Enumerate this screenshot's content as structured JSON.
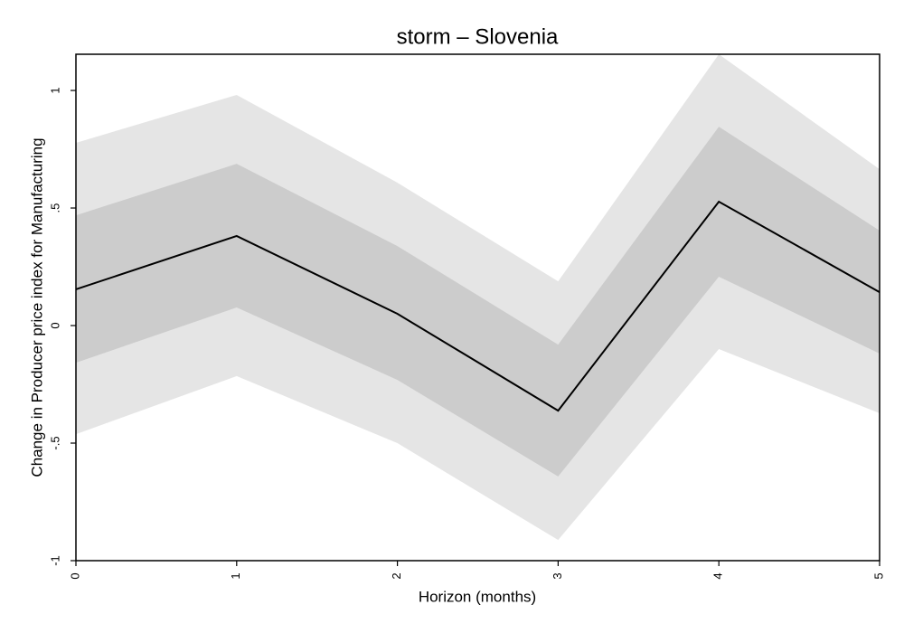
{
  "chart_data": {
    "type": "line",
    "title": "storm – Slovenia",
    "x_label": "Horizon (months)",
    "y_label": "Change in Producer price index for Manufacturing",
    "x": [
      0,
      1,
      2,
      3,
      4,
      5
    ],
    "values": [
      0.154,
      0.381,
      0.05,
      -0.362,
      0.527,
      0.142
    ],
    "color": "#000000",
    "bands": [
      {
        "lower": [
          -0.462,
          -0.215,
          -0.5,
          -0.912,
          -0.1,
          -0.373
        ],
        "upper": [
          0.777,
          0.981,
          0.608,
          0.188,
          1.154,
          0.665
        ],
        "color": "#e5e5e5"
      },
      {
        "lower": [
          -0.158,
          0.077,
          -0.231,
          -0.642,
          0.208,
          -0.119
        ],
        "upper": [
          0.469,
          0.688,
          0.338,
          -0.081,
          0.846,
          0.404
        ],
        "color": "#cccccc"
      }
    ],
    "xlim": [
      0,
      5
    ],
    "xticks": [
      0,
      1,
      2,
      3,
      4,
      5
    ],
    "ylim": [
      -1,
      1.154
    ],
    "yticks": [
      -1,
      {
        "value": -0.5,
        "label": "-.5"
      },
      0,
      {
        "value": 0.5,
        "label": ".5"
      },
      1
    ],
    "grid": false
  }
}
